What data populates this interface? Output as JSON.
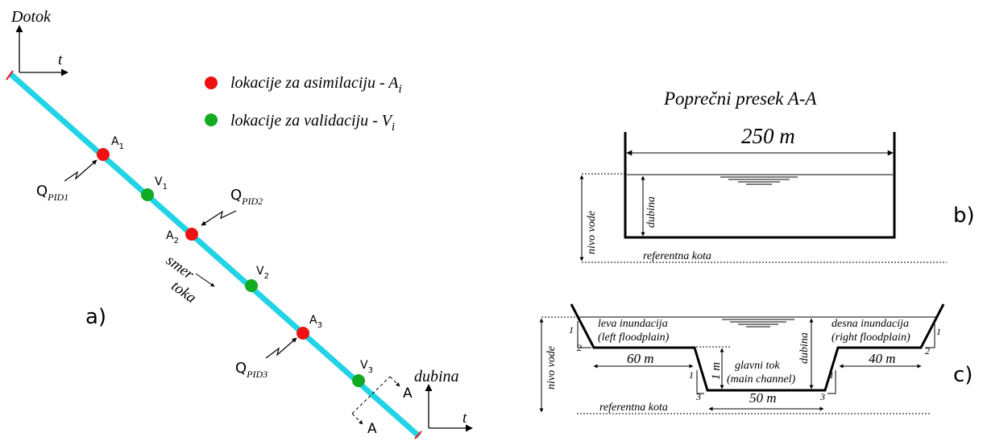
{
  "colors": {
    "river": "#22d3e6",
    "assimilation": "#ee1111",
    "validation": "#11aa22",
    "ink": "#000000"
  },
  "panel_a": {
    "label": "a)",
    "inflow_axis": {
      "vertical": "Dotok",
      "horizontal": "t"
    },
    "depth_axis": {
      "vertical": "dubina",
      "horizontal": "t"
    },
    "legend": {
      "assimilation": {
        "text": "lokacije za asimilaciju - A",
        "sub": "i"
      },
      "validation": {
        "text": "lokacije za validaciju - V",
        "sub": "i"
      }
    },
    "points": [
      {
        "type": "assimilation",
        "base": "A",
        "sub": "1"
      },
      {
        "type": "validation",
        "base": "V",
        "sub": "1"
      },
      {
        "type": "assimilation",
        "base": "A",
        "sub": "2"
      },
      {
        "type": "validation",
        "base": "V",
        "sub": "2"
      },
      {
        "type": "assimilation",
        "base": "A",
        "sub": "3"
      },
      {
        "type": "validation",
        "base": "V",
        "sub": "3"
      }
    ],
    "inflows": [
      {
        "base": "Q",
        "sub": "PID1"
      },
      {
        "base": "Q",
        "sub": "PID2"
      },
      {
        "base": "Q",
        "sub": "PID3"
      }
    ],
    "flow_direction": {
      "line1": "smer",
      "line2": "toka"
    },
    "section_labels": [
      "A",
      "A"
    ]
  },
  "panel_b": {
    "label": "b)",
    "title": "Poprečni presek A-A",
    "width_label": "250 m",
    "depth_label": "dubina",
    "water_level_label": "nivo vode",
    "reference_label": "referentna kota"
  },
  "panel_c": {
    "label": "c)",
    "left_floodplain": {
      "line1": "leva inundacija",
      "line2": "(left floodplain)"
    },
    "right_floodplain": {
      "line1": "desna inundacija",
      "line2": "(right floodplain)"
    },
    "main_channel": {
      "line1": "glavni tok",
      "line2": "(main channel)"
    },
    "left_width": "60 m",
    "right_width": "40 m",
    "main_width": "50 m",
    "bank_height": "1 m",
    "depth_label": "dubina",
    "water_level_label": "nivo vode",
    "reference_label": "referentna kota",
    "slopes": {
      "rise": "1",
      "floodplain_run": "2",
      "channel_run": "3"
    }
  }
}
